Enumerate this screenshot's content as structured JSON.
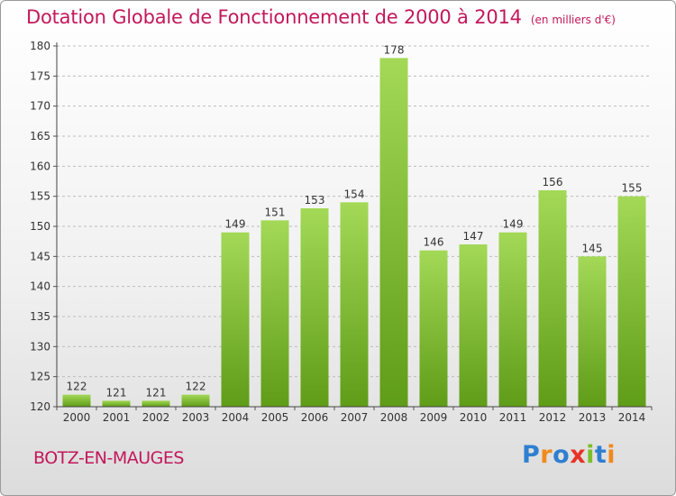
{
  "header": {
    "title": "Dotation Globale de Fonctionnement de 2000 à 2014",
    "subtitle": "(en milliers d'€)"
  },
  "footer": {
    "commune": "BOTZ-EN-MAUGES",
    "logo": {
      "text": "Proxiti",
      "letter_colors": [
        "#2f7fd0",
        "#f08a1d",
        "#2f7fd0",
        "#e63326",
        "#7bbf2a",
        "#2f7fd0",
        "#f08a1d"
      ]
    }
  },
  "colors": {
    "title": "#c2185b",
    "bar_light": "#a3d957",
    "bar_dark": "#5f9c18",
    "grid": "#bdbdbd",
    "axis_text": "#333333"
  },
  "chart_data": {
    "type": "bar",
    "title": "Dotation Globale de Fonctionnement de 2000 à 2014",
    "subtitle": "(en milliers d'€)",
    "categories": [
      "2000",
      "2001",
      "2002",
      "2003",
      "2004",
      "2005",
      "2006",
      "2007",
      "2008",
      "2009",
      "2010",
      "2011",
      "2012",
      "2013",
      "2014"
    ],
    "values": [
      122,
      121,
      121,
      122,
      149,
      151,
      153,
      154,
      178,
      146,
      147,
      149,
      156,
      145,
      155
    ],
    "data_labels": [
      "122",
      "121",
      "121",
      "122",
      "149",
      "151",
      "153",
      "154",
      "178",
      "146",
      "147",
      "149",
      "156",
      "145",
      "155"
    ],
    "ylim": [
      120,
      180
    ],
    "yticks": [
      120,
      125,
      130,
      135,
      140,
      145,
      150,
      155,
      160,
      165,
      170,
      175,
      180
    ],
    "grid": true,
    "xlabel": "",
    "ylabel": ""
  }
}
